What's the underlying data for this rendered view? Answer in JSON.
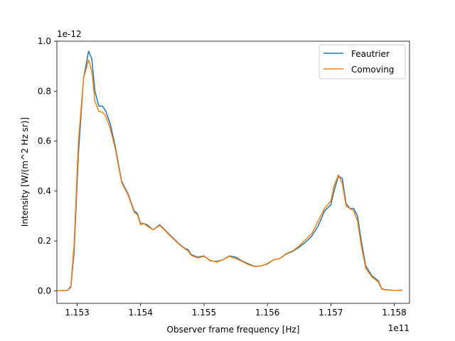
{
  "chart_data": {
    "type": "line",
    "xlabel": "Observer frame frequency [Hz]",
    "ylabel": "Intensity [W/(m^2 Hz sr)]",
    "x_offset_label": "1e11",
    "y_offset_label": "1e-12",
    "xlim": [
      1.15268,
      1.15824
    ],
    "ylim": [
      -0.05,
      1.0
    ],
    "x_ticks": [
      1.153,
      1.154,
      1.155,
      1.156,
      1.157,
      1.158
    ],
    "x_tick_labels": [
      "1.153",
      "1.154",
      "1.155",
      "1.156",
      "1.157",
      "1.158"
    ],
    "y_ticks": [
      0.0,
      0.2,
      0.4,
      0.6,
      0.8,
      1.0
    ],
    "y_tick_labels": [
      "0.0",
      "0.2",
      "0.4",
      "0.6",
      "0.8",
      "1.0"
    ],
    "grid": false,
    "legend": "top-right",
    "series": [
      {
        "name": "Feautrier",
        "color": "#1f77b4",
        "x": [
          1.1527,
          1.15285,
          1.1529,
          1.15295,
          1.15302,
          1.1531,
          1.15318,
          1.15323,
          1.15328,
          1.15334,
          1.1534,
          1.15345,
          1.15352,
          1.1536,
          1.1537,
          1.1538,
          1.1539,
          1.15395,
          1.154,
          1.15405,
          1.1541,
          1.1542,
          1.1543,
          1.1544,
          1.1545,
          1.1546,
          1.1547,
          1.15475,
          1.1548,
          1.1549,
          1.155,
          1.1551,
          1.1552,
          1.1553,
          1.1554,
          1.1555,
          1.1556,
          1.1557,
          1.1558,
          1.1559,
          1.156,
          1.1561,
          1.1562,
          1.1563,
          1.1564,
          1.1565,
          1.1566,
          1.1567,
          1.1568,
          1.1569,
          1.157,
          1.15705,
          1.15712,
          1.15718,
          1.15724,
          1.1573,
          1.15736,
          1.15742,
          1.15748,
          1.15755,
          1.15765,
          1.15775,
          1.1578,
          1.15785,
          1.158,
          1.15812
        ],
        "y": [
          0.0,
          0.002,
          0.015,
          0.15,
          0.55,
          0.85,
          0.96,
          0.93,
          0.8,
          0.74,
          0.74,
          0.72,
          0.67,
          0.58,
          0.44,
          0.39,
          0.32,
          0.31,
          0.27,
          0.27,
          0.265,
          0.245,
          0.265,
          0.24,
          0.215,
          0.19,
          0.17,
          0.165,
          0.145,
          0.135,
          0.14,
          0.12,
          0.118,
          0.125,
          0.14,
          0.135,
          0.12,
          0.108,
          0.098,
          0.1,
          0.108,
          0.125,
          0.13,
          0.148,
          0.158,
          0.175,
          0.195,
          0.22,
          0.26,
          0.32,
          0.345,
          0.4,
          0.46,
          0.45,
          0.35,
          0.33,
          0.33,
          0.3,
          0.2,
          0.1,
          0.06,
          0.04,
          0.01,
          0.005,
          0.002,
          0.003
        ]
      },
      {
        "name": "Comoving",
        "color": "#ff7f0e",
        "x": [
          1.1527,
          1.15285,
          1.1529,
          1.15295,
          1.15302,
          1.1531,
          1.15318,
          1.15323,
          1.15328,
          1.15334,
          1.1534,
          1.15345,
          1.15352,
          1.1536,
          1.1537,
          1.1538,
          1.1539,
          1.15395,
          1.154,
          1.15405,
          1.1541,
          1.1542,
          1.1543,
          1.1544,
          1.1545,
          1.1546,
          1.1547,
          1.15475,
          1.1548,
          1.1549,
          1.155,
          1.1551,
          1.1552,
          1.1553,
          1.1554,
          1.1555,
          1.1556,
          1.1557,
          1.1558,
          1.1559,
          1.156,
          1.1561,
          1.1562,
          1.1563,
          1.1564,
          1.1565,
          1.1566,
          1.1567,
          1.1568,
          1.1569,
          1.157,
          1.15705,
          1.15712,
          1.15718,
          1.15724,
          1.1573,
          1.15736,
          1.15742,
          1.15748,
          1.15755,
          1.15765,
          1.15775,
          1.1578,
          1.15785,
          1.158,
          1.15812
        ],
        "y": [
          0.0,
          0.002,
          0.02,
          0.18,
          0.6,
          0.85,
          0.925,
          0.88,
          0.76,
          0.72,
          0.715,
          0.7,
          0.65,
          0.57,
          0.435,
          0.385,
          0.315,
          0.305,
          0.265,
          0.27,
          0.26,
          0.245,
          0.262,
          0.238,
          0.212,
          0.188,
          0.168,
          0.16,
          0.142,
          0.132,
          0.138,
          0.122,
          0.115,
          0.125,
          0.138,
          0.13,
          0.118,
          0.105,
          0.097,
          0.1,
          0.11,
          0.125,
          0.13,
          0.15,
          0.16,
          0.18,
          0.205,
          0.23,
          0.28,
          0.33,
          0.36,
          0.42,
          0.465,
          0.43,
          0.34,
          0.33,
          0.32,
          0.28,
          0.18,
          0.09,
          0.055,
          0.035,
          0.008,
          0.004,
          0.002,
          0.002
        ]
      }
    ]
  }
}
